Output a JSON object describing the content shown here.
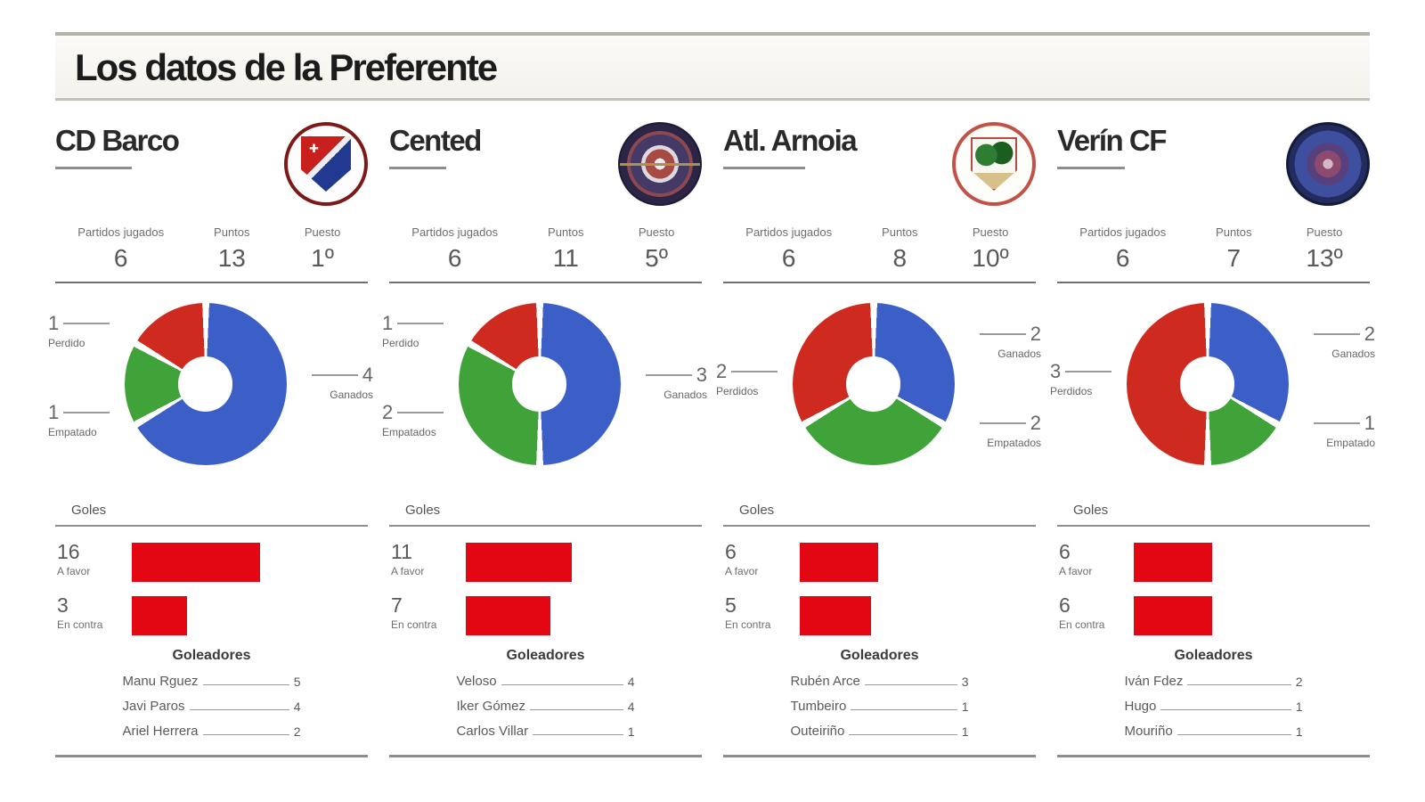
{
  "header": {
    "title": "Los datos de la Preferente"
  },
  "labels": {
    "played": "Partidos jugados",
    "points": "Puntos",
    "position": "Puesto",
    "goals": "Goles",
    "goals_for": "A favor",
    "goals_against": "En contra",
    "scorers": "Goleadores"
  },
  "colors": {
    "won": "#3b5fc6",
    "drawn": "#3fa33a",
    "lost": "#cf2a20",
    "bar": "#e30613"
  },
  "teams": [
    {
      "name": "CD Barco",
      "crest_icon": "cd-barco-crest",
      "stats": {
        "played": "6",
        "points": "13",
        "position": "1º"
      },
      "results": [
        {
          "value": "1",
          "label": "Perdido",
          "pos": "left-top"
        },
        {
          "value": "1",
          "label": "Empatado",
          "pos": "left-bottom"
        },
        {
          "value": "4",
          "label": "Ganados",
          "pos": "right-mid"
        }
      ],
      "goals": {
        "for": "16",
        "against": "3"
      },
      "scorers": [
        {
          "name": "Manu Rguez",
          "goals": "5"
        },
        {
          "name": "Javi Paros",
          "goals": "4"
        },
        {
          "name": "Ariel Herrera",
          "goals": "2"
        }
      ]
    },
    {
      "name": "Cented",
      "crest_icon": "cented-crest",
      "stats": {
        "played": "6",
        "points": "11",
        "position": "5º"
      },
      "results": [
        {
          "value": "1",
          "label": "Perdido",
          "pos": "left-top"
        },
        {
          "value": "2",
          "label": "Empatados",
          "pos": "left-bottom"
        },
        {
          "value": "3",
          "label": "Ganados",
          "pos": "right-mid"
        }
      ],
      "goals": {
        "for": "11",
        "against": "7"
      },
      "scorers": [
        {
          "name": "Veloso",
          "goals": "4"
        },
        {
          "name": "Iker Gómez",
          "goals": "4"
        },
        {
          "name": "Carlos Villar",
          "goals": "1"
        }
      ]
    },
    {
      "name": "Atl. Arnoia",
      "crest_icon": "atl-arnoia-crest",
      "stats": {
        "played": "6",
        "points": "8",
        "position": "10º"
      },
      "results": [
        {
          "value": "2",
          "label": "Perdidos",
          "pos": "left-mid"
        },
        {
          "value": "2",
          "label": "Ganados",
          "pos": "right-top"
        },
        {
          "value": "2",
          "label": "Empatados",
          "pos": "right-bottom"
        }
      ],
      "goals": {
        "for": "6",
        "against": "5"
      },
      "scorers": [
        {
          "name": "Rubén Arce",
          "goals": "3"
        },
        {
          "name": "Tumbeiro",
          "goals": "1"
        },
        {
          "name": "Outeiriño",
          "goals": "1"
        }
      ]
    },
    {
      "name": "Verín CF",
      "crest_icon": "verin-cf-crest",
      "stats": {
        "played": "6",
        "points": "7",
        "position": "13º"
      },
      "results": [
        {
          "value": "3",
          "label": "Perdidos",
          "pos": "left-mid"
        },
        {
          "value": "2",
          "label": "Ganados",
          "pos": "right-top"
        },
        {
          "value": "1",
          "label": "Empatado",
          "pos": "right-bottom"
        }
      ],
      "goals": {
        "for": "6",
        "against": "6"
      },
      "scorers": [
        {
          "name": "Iván Fdez",
          "goals": "2"
        },
        {
          "name": "Hugo",
          "goals": "1"
        },
        {
          "name": "Mouriño",
          "goals": "1"
        }
      ]
    }
  ],
  "chart_data": [
    {
      "team": "CD Barco",
      "donut": {
        "type": "pie",
        "labels": [
          "Ganados",
          "Empatados",
          "Perdidos"
        ],
        "values": [
          4,
          1,
          1
        ],
        "start": "top",
        "direction": "clockwise"
      },
      "bars": {
        "type": "bar",
        "title": "Goles",
        "categories": [
          "A favor",
          "En contra"
        ],
        "values": [
          16,
          3
        ]
      }
    },
    {
      "team": "Cented",
      "donut": {
        "type": "pie",
        "labels": [
          "Ganados",
          "Empatados",
          "Perdidos"
        ],
        "values": [
          3,
          2,
          1
        ],
        "start": "top",
        "direction": "clockwise"
      },
      "bars": {
        "type": "bar",
        "title": "Goles",
        "categories": [
          "A favor",
          "En contra"
        ],
        "values": [
          11,
          7
        ]
      }
    },
    {
      "team": "Atl. Arnoia",
      "donut": {
        "type": "pie",
        "labels": [
          "Ganados",
          "Empatados",
          "Perdidos"
        ],
        "values": [
          2,
          2,
          2
        ],
        "start": "top",
        "direction": "clockwise"
      },
      "bars": {
        "type": "bar",
        "title": "Goles",
        "categories": [
          "A favor",
          "En contra"
        ],
        "values": [
          6,
          5
        ]
      }
    },
    {
      "team": "Verín CF",
      "donut": {
        "type": "pie",
        "labels": [
          "Ganados",
          "Empatados",
          "Perdidos"
        ],
        "values": [
          2,
          1,
          3
        ],
        "start": "top",
        "direction": "clockwise"
      },
      "bars": {
        "type": "bar",
        "title": "Goles",
        "categories": [
          "A favor",
          "En contra"
        ],
        "values": [
          6,
          6
        ]
      }
    }
  ]
}
